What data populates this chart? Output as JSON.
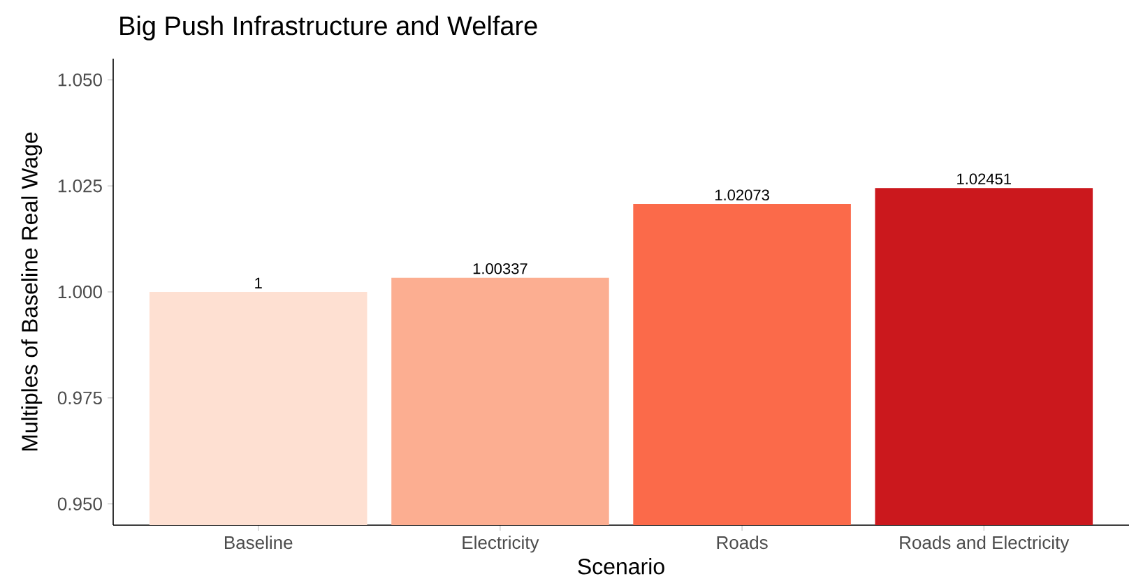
{
  "chart_data": {
    "type": "bar",
    "title": "Big Push Infrastructure and Welfare",
    "xlabel": "Scenario",
    "ylabel": "Multiples of Baseline Real Wage",
    "categories": [
      "Baseline",
      "Electricity",
      "Roads",
      "Roads and Electricity"
    ],
    "values": [
      1,
      1.00337,
      1.02073,
      1.02451
    ],
    "colors": [
      "#fee0d2",
      "#fcae91",
      "#fb6a4a",
      "#cb181d"
    ],
    "ylim": [
      0.945,
      1.055
    ],
    "yticks": [
      {
        "value": 0.95,
        "label": "0.950"
      },
      {
        "value": 0.975,
        "label": "0.975"
      },
      {
        "value": 1.0,
        "label": "1.000"
      },
      {
        "value": 1.025,
        "label": "1.025"
      },
      {
        "value": 1.05,
        "label": "1.050"
      }
    ],
    "data_labels": true
  }
}
